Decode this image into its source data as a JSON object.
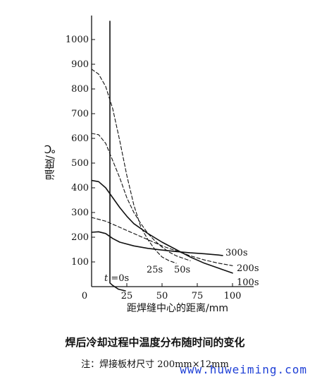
{
  "chart_data": {
    "type": "line",
    "title": "焊后冷却过程中温度分布随时间的变化",
    "note": "注：焊接板材尺寸 200mm×12mm",
    "xlabel": "距焊缝中心的距离/mm",
    "ylabel": "温度/℃",
    "xlim": [
      0,
      100
    ],
    "ylim": [
      0,
      1000
    ],
    "xticks": [
      "0",
      "25",
      "50",
      "75",
      "100"
    ],
    "yticks": [
      "100",
      "200",
      "300",
      "400",
      "500",
      "600",
      "700",
      "800",
      "900",
      "1000"
    ],
    "grid": false,
    "series": [
      {
        "name": "t=0s",
        "style": "solid",
        "x": [
          13,
          13,
          15,
          19,
          24
        ],
        "y": [
          1100,
          15,
          5,
          -20,
          -50
        ]
      },
      {
        "name": "25s",
        "style": "dashed",
        "x": [
          0,
          5,
          10,
          15,
          20,
          25,
          30,
          35,
          40,
          45,
          50,
          55,
          60
        ],
        "y": [
          880,
          860,
          810,
          720,
          590,
          450,
          330,
          240,
          190,
          150,
          120,
          105,
          95
        ]
      },
      {
        "name": "50s",
        "style": "dashed",
        "x": [
          0,
          5,
          10,
          15,
          20,
          25,
          30,
          35,
          40,
          45,
          50,
          55,
          60,
          70
        ],
        "y": [
          620,
          615,
          580,
          510,
          440,
          360,
          300,
          255,
          215,
          185,
          160,
          140,
          125,
          105
        ]
      },
      {
        "name": "100s",
        "style": "solid",
        "x": [
          0,
          5,
          10,
          15,
          20,
          25,
          30,
          40,
          50,
          60,
          70,
          80,
          90,
          100
        ],
        "y": [
          430,
          425,
          400,
          360,
          320,
          285,
          255,
          215,
          180,
          150,
          120,
          95,
          75,
          55
        ]
      },
      {
        "name": "200s",
        "style": "dashed",
        "x": [
          0,
          10,
          20,
          30,
          40,
          50,
          60,
          70,
          80,
          90,
          100
        ],
        "y": [
          280,
          265,
          240,
          215,
          190,
          165,
          145,
          125,
          108,
          95,
          85
        ]
      },
      {
        "name": "300s",
        "style": "solid",
        "x": [
          0,
          5,
          10,
          15,
          20,
          30,
          40,
          50,
          60,
          70,
          80,
          90,
          93
        ],
        "y": [
          220,
          222,
          215,
          195,
          180,
          165,
          155,
          148,
          142,
          137,
          133,
          128,
          126
        ]
      }
    ],
    "annotations": [
      "t =0s",
      "25s",
      "50s",
      "100s",
      "200s",
      "300s"
    ]
  },
  "watermark": "www.huweiming.com"
}
